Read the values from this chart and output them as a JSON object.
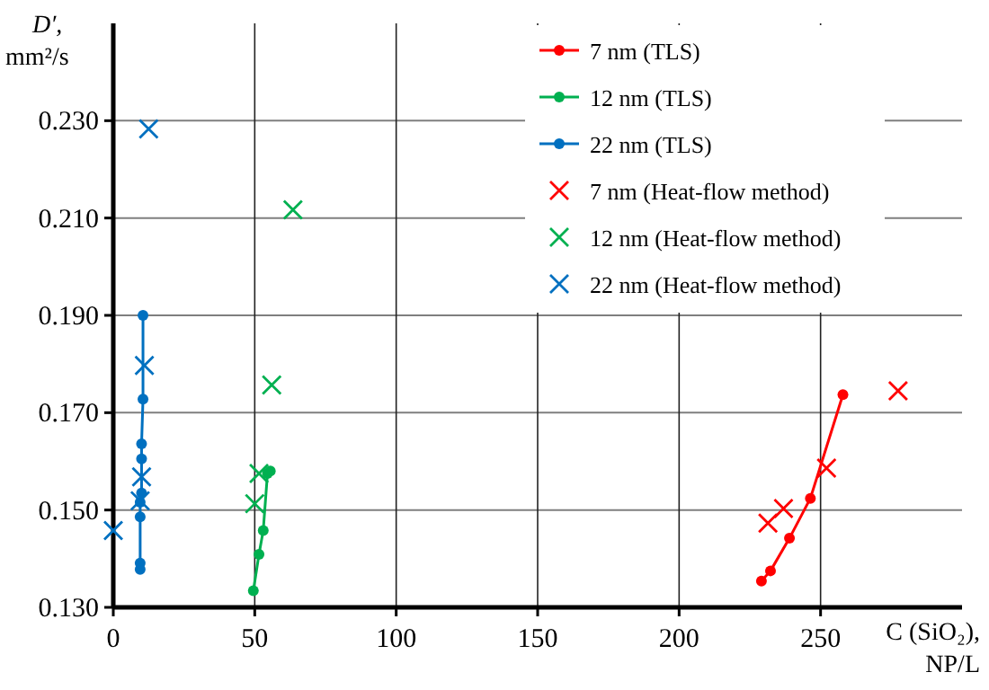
{
  "chart_data": {
    "type": "line",
    "xlabel": "C (SiO₂), NP/L",
    "ylabel": "D′, mm²/s",
    "xlim": [
      0,
      300
    ],
    "xticks": [
      0,
      50,
      100,
      150,
      200,
      250
    ],
    "ylim": [
      0.13,
      0.25
    ],
    "yticks": [
      {
        "value": 0.13,
        "label": "0.130"
      },
      {
        "value": 0.15,
        "label": "0.150"
      },
      {
        "value": 0.17,
        "label": "0.170"
      },
      {
        "value": 0.19,
        "label": "0.190"
      },
      {
        "value": 0.21,
        "label": "0.210"
      },
      {
        "value": 0.23,
        "label": "0.230"
      }
    ],
    "grid": true,
    "legend": "top right",
    "series": [
      {
        "name": "7 nm (TLS)",
        "marker": "circle",
        "color": "#ff0000",
        "x": [
          229.1,
          232.3,
          239.0,
          246.4,
          257.9
        ],
        "values": [
          0.1354,
          0.1375,
          0.1442,
          0.1524,
          0.1737
        ]
      },
      {
        "name": "12 nm (TLS)",
        "marker": "circle",
        "color": "#00b050",
        "x": [
          49.5,
          51.5,
          53,
          54.5,
          55.5
        ],
        "values": [
          0.1334,
          0.1409,
          0.1458,
          0.1575,
          0.158
        ]
      },
      {
        "name": "22 nm (TLS)",
        "marker": "circle",
        "color": "#0070c0",
        "x": [
          9.5,
          9.5,
          9.5,
          9.5,
          10,
          10,
          10,
          10.5,
          10.5
        ],
        "values": [
          0.1378,
          0.1391,
          0.1486,
          0.1516,
          0.1535,
          0.1605,
          0.1636,
          0.1728,
          0.19
        ]
      },
      {
        "name": "7 nm (Heat-flow method)",
        "type": "scatter",
        "marker": "cross",
        "color": "#ff0000",
        "x": [
          231.4,
          236.9,
          252.1,
          277.4
        ],
        "values": [
          0.1473,
          0.1503,
          0.1586,
          0.1745
        ]
      },
      {
        "name": "12 nm (Heat-flow method)",
        "type": "scatter",
        "marker": "cross",
        "color": "#00b050",
        "x": [
          50,
          51.5,
          56,
          63.5
        ],
        "values": [
          0.1513,
          0.1575,
          0.1757,
          0.2117
        ]
      },
      {
        "name": "22 nm (Heat-flow method)",
        "type": "scatter",
        "marker": "cross",
        "color": "#0070c0",
        "x": [
          0,
          9.5,
          10,
          11,
          12.5
        ],
        "values": [
          0.1458,
          0.1519,
          0.1568,
          0.1797,
          0.2283
        ]
      }
    ]
  }
}
